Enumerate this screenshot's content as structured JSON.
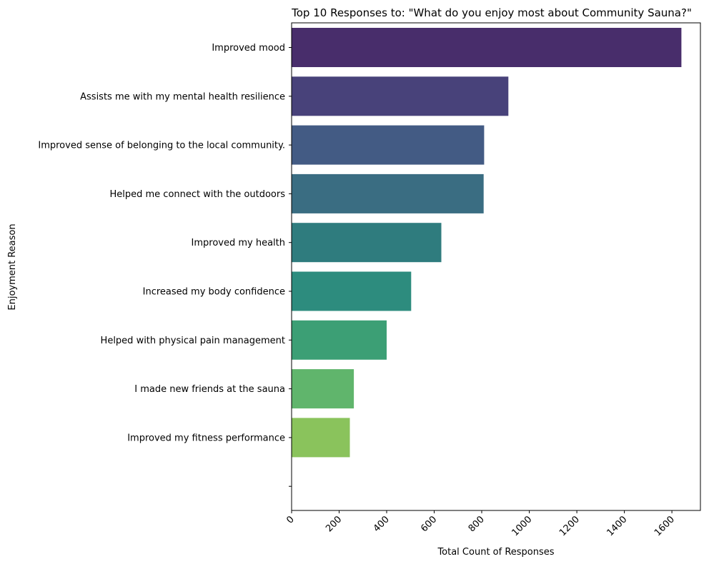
{
  "chart_data": {
    "type": "bar",
    "orientation": "horizontal",
    "title": "Top 10 Responses to: \"What do you enjoy most about Community Sauna?\"",
    "xlabel": "Total Count of Responses",
    "ylabel": "Enjoyment Reason",
    "categories": [
      "Improved mood",
      "Assists me with my mental health resilience",
      "Improved sense of belonging to the local community.",
      "Helped me connect with the outdoors",
      "Improved my health",
      "Increased my body confidence",
      "Helped with physical pain management",
      "I made new friends at the sauna",
      "Improved my fitness performance",
      ""
    ],
    "values": [
      1640,
      912,
      810,
      808,
      630,
      503,
      400,
      262,
      245,
      0
    ],
    "colors": [
      "#482d6b",
      "#48427a",
      "#435b84",
      "#3a6d82",
      "#2f7c7e",
      "#2d8c7e",
      "#3c9f75",
      "#60b56c",
      "#8ac35c",
      "#ffffff"
    ],
    "xticks": [
      0,
      200,
      400,
      600,
      800,
      1000,
      1200,
      1400,
      1600
    ],
    "xtick_labels": [
      "0",
      "200",
      "400",
      "600",
      "800",
      "1000",
      "1200",
      "1400",
      "1600"
    ],
    "xlim": [
      0,
      1720
    ],
    "grid": false,
    "legend": "none"
  }
}
